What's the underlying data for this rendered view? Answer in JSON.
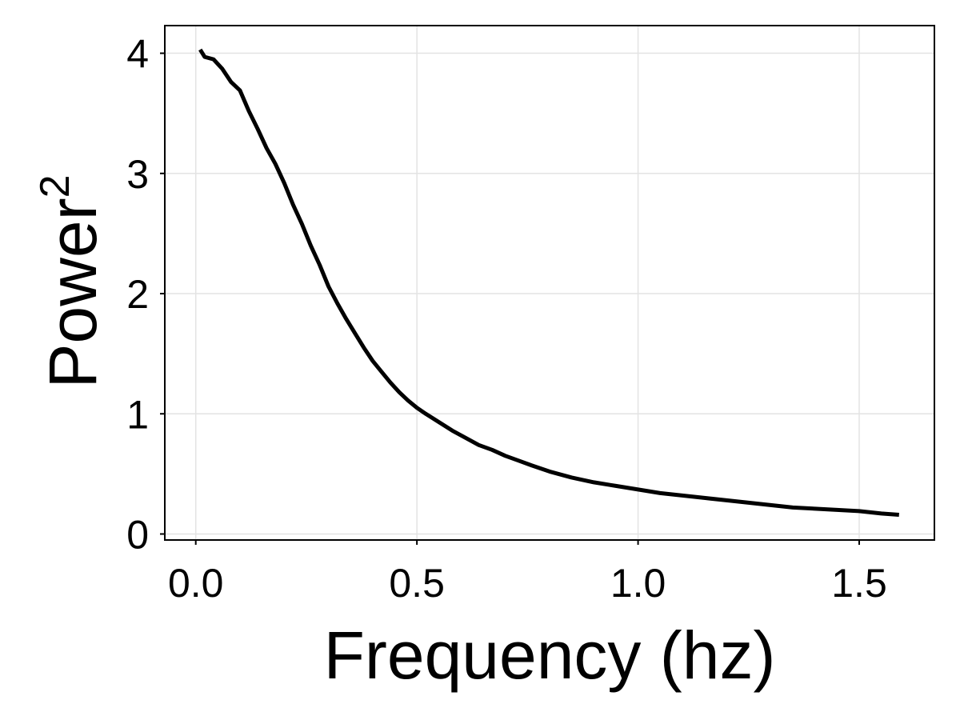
{
  "chart_data": {
    "type": "line",
    "title": "",
    "xlabel": "Frequency (hz)",
    "ylabel": "Power",
    "ylabel_superscript": "2",
    "xlim": [
      -0.07,
      1.67
    ],
    "ylim": [
      -0.05,
      4.23
    ],
    "xticks": [
      0.0,
      0.5,
      1.0,
      1.5
    ],
    "xtick_labels": [
      "0.0",
      "0.5",
      "1.0",
      "1.5"
    ],
    "yticks": [
      0,
      1,
      2,
      3,
      4
    ],
    "ytick_labels": [
      "0",
      "1",
      "2",
      "3",
      "4"
    ],
    "grid": true,
    "legend": "none",
    "series": [
      {
        "color": "#000000",
        "x": [
          0.01,
          0.02,
          0.04,
          0.06,
          0.08,
          0.1,
          0.12,
          0.14,
          0.16,
          0.18,
          0.2,
          0.22,
          0.24,
          0.26,
          0.28,
          0.3,
          0.32,
          0.34,
          0.36,
          0.38,
          0.4,
          0.42,
          0.44,
          0.46,
          0.48,
          0.5,
          0.52,
          0.55,
          0.58,
          0.61,
          0.64,
          0.67,
          0.7,
          0.73,
          0.76,
          0.8,
          0.85,
          0.9,
          0.95,
          1.0,
          1.05,
          1.1,
          1.15,
          1.2,
          1.25,
          1.3,
          1.35,
          1.4,
          1.45,
          1.5,
          1.55,
          1.59
        ],
        "y": [
          4.03,
          3.97,
          3.95,
          3.87,
          3.76,
          3.69,
          3.52,
          3.37,
          3.21,
          3.08,
          2.92,
          2.74,
          2.58,
          2.4,
          2.24,
          2.06,
          1.92,
          1.79,
          1.67,
          1.55,
          1.44,
          1.35,
          1.26,
          1.18,
          1.11,
          1.05,
          1.0,
          0.93,
          0.86,
          0.8,
          0.74,
          0.7,
          0.65,
          0.61,
          0.57,
          0.52,
          0.47,
          0.43,
          0.4,
          0.37,
          0.34,
          0.32,
          0.3,
          0.28,
          0.26,
          0.24,
          0.22,
          0.21,
          0.2,
          0.19,
          0.17,
          0.16
        ]
      }
    ]
  }
}
